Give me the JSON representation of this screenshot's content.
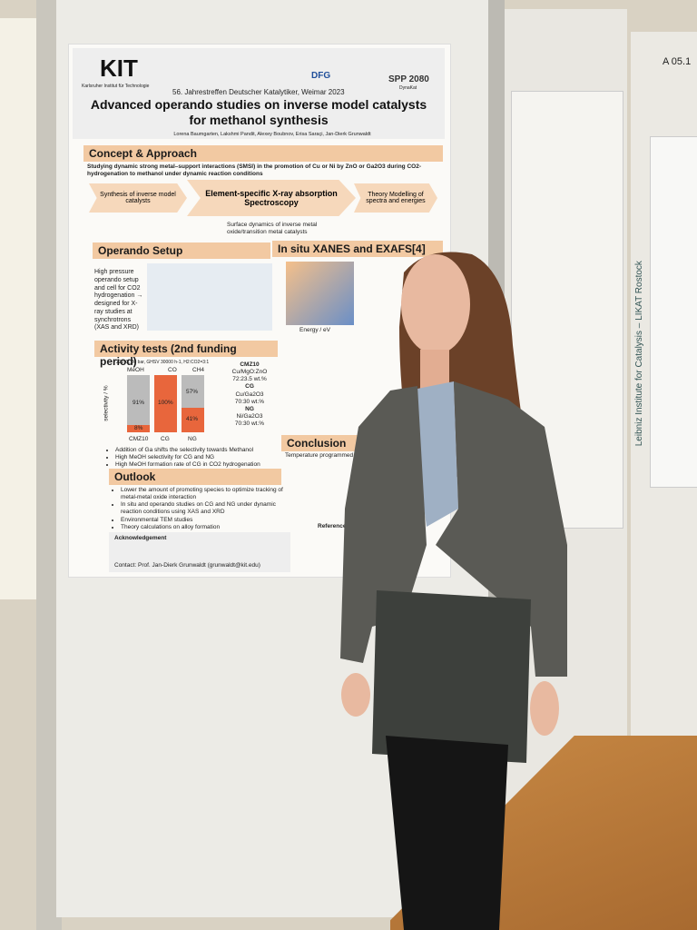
{
  "header": {
    "logo": "KIT",
    "institute": "Karlsruher Institut für Technologie",
    "dfg": "DFG",
    "spp": "SPP 2080",
    "spp_sub": "DynaKat",
    "conference": "56. Jahrestreffen Deutscher Katalytiker, Weimar 2023",
    "title": "Advanced operando studies on inverse model catalysts for methanol synthesis",
    "authors": "Lorena Baumgarten, Lakshmi Pandit, Alexey Boubnov, Erisa Saraçi, Jan-Dierk Grunwaldt"
  },
  "concept": {
    "heading": "Concept & Approach",
    "text": "Studying dynamic strong metal–support interactions (SMSI) in the promotion of Cu or Ni by ZnO or Ga2O3 during CO2-hydrogenation to methanol under dynamic reaction conditions",
    "step1": "Synthesis of inverse model catalysts",
    "step2": "Element-specific X-ray absorption Spectroscopy",
    "step3": "Theory Modelling of spectra and energies",
    "summary": "Surface dynamics of inverse metal oxide/transition metal catalysts"
  },
  "setup": {
    "heading": "Operando Setup",
    "text": "High pressure operando setup and cell for CO2 hydrogenation → designed for X-ray studies at synchrotrons (XAS and XRD)"
  },
  "xanes": {
    "heading": "In situ XANES and EXAFS[4]",
    "axis": "Energy / eV"
  },
  "activity": {
    "heading": "Activity tests (2nd funding period)",
    "conditions": "220°C, 30 bar, GHSV 30000 h-1, H2:CO2=3:1",
    "legend": [
      "MeOH",
      "CO",
      "CH4"
    ],
    "categories": [
      "CMZ10",
      "CG",
      "NG"
    ],
    "bar_labels": [
      "91%",
      "8%",
      "100%",
      "57%",
      "41%"
    ],
    "ylabel": "selectivity / %",
    "catalysts": [
      [
        "CMZ10",
        "Cu/MgO:ZnO",
        "72:23.5 wt.%"
      ],
      [
        "CG",
        "Cu/Ga2O3",
        "70:30 wt.%"
      ],
      [
        "NG",
        "Ni/Ga2O3",
        "70:30 wt.%"
      ]
    ],
    "bullets": [
      "Addition of Ga shifts the selectivity towards Methanol",
      "High MeOH selectivity for CG and NG",
      "High MeOH formation rate of CG in CO2 hydrogenation"
    ]
  },
  "conclusion": {
    "heading": "Conclusion",
    "text": "Temperature programmed r"
  },
  "outlook": {
    "heading": "Outlook",
    "bullets": [
      "Lower the amount of promoting species to optimize tracking of metal-metal oxide interaction",
      "In situ and operando studies on CG and NG under dynamic reaction conditions using XAS and XRD",
      "Environmental TEM studies",
      "Theory calculations on alloy formation"
    ]
  },
  "footer": {
    "acknowledgement": "Acknowledgement",
    "references": "References",
    "contact": "Contact: Prof. Jan-Dierk Grunwaldt (grunwaldt@kit.edu)"
  },
  "right_poster": {
    "side_title": "Leibniz Institute for Catalysis – LIKAT Rostock",
    "board_number": "A 05.1"
  }
}
